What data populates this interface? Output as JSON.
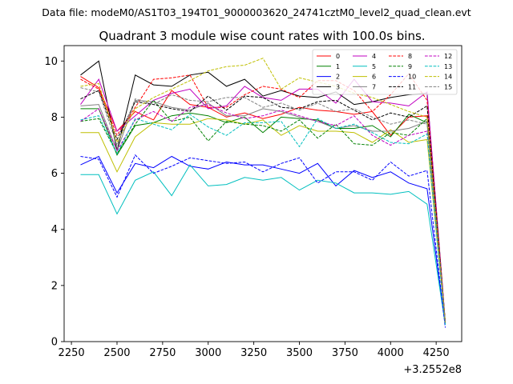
{
  "figure": {
    "suptitle": "Data file: modeM0/AS1T03_194T01_9000003620_24741cztM0_level2_quad_clean.evt"
  },
  "chart_data": {
    "type": "line",
    "title": "Quadrant 3 module wise count rates with 100.0s bins.",
    "xlabel": "",
    "ylabel": "",
    "x_offset_label": "+3.2552e8",
    "xlim": [
      2210,
      4390
    ],
    "ylim": [
      0,
      10.55
    ],
    "xticks": [
      2250,
      2500,
      2750,
      3000,
      3250,
      3500,
      3750,
      4000,
      4250
    ],
    "yticks": [
      0,
      2,
      4,
      6,
      8,
      10
    ],
    "grid": false,
    "legend": {
      "placement": "top-right",
      "columns": 4
    },
    "x": [
      2300,
      2400,
      2500,
      2600,
      2700,
      2800,
      2900,
      3000,
      3100,
      3200,
      3300,
      3400,
      3500,
      3600,
      3700,
      3800,
      3900,
      4000,
      4100,
      4200,
      4300
    ],
    "series": [
      {
        "name": "0",
        "color": "#ff0000",
        "dash": "solid",
        "values": [
          9.45,
          9.05,
          7.5,
          8.2,
          7.9,
          8.95,
          8.45,
          8.35,
          8.0,
          8.15,
          7.95,
          8.1,
          8.35,
          8.25,
          8.2,
          8.1,
          8.2,
          7.35,
          8.0,
          8.05,
          0.7
        ]
      },
      {
        "name": "1",
        "color": "#008000",
        "dash": "solid",
        "values": [
          8.3,
          8.3,
          6.65,
          7.7,
          7.8,
          8.05,
          8.15,
          8.05,
          7.8,
          8.0,
          7.45,
          8.0,
          7.95,
          7.9,
          7.6,
          7.6,
          7.7,
          7.3,
          8.1,
          7.8,
          0.65
        ]
      },
      {
        "name": "2",
        "color": "#0000ff",
        "dash": "solid",
        "values": [
          6.3,
          6.6,
          5.3,
          6.35,
          6.2,
          6.6,
          6.25,
          6.15,
          6.4,
          6.3,
          6.3,
          6.15,
          6.0,
          6.35,
          5.55,
          6.1,
          5.85,
          6.05,
          5.65,
          5.45,
          0.6
        ]
      },
      {
        "name": "3",
        "color": "#000000",
        "dash": "solid",
        "values": [
          9.5,
          10.0,
          6.8,
          9.5,
          9.15,
          9.1,
          9.5,
          9.6,
          9.1,
          9.35,
          8.75,
          8.95,
          8.75,
          8.7,
          8.9,
          8.45,
          8.55,
          8.7,
          8.8,
          8.85,
          0.7
        ]
      },
      {
        "name": "4",
        "color": "#c000c0",
        "dash": "solid",
        "values": [
          8.45,
          9.35,
          7.5,
          8.05,
          8.6,
          8.85,
          9.0,
          8.3,
          8.4,
          9.1,
          8.7,
          8.6,
          9.0,
          9.0,
          8.5,
          9.35,
          8.55,
          8.5,
          8.4,
          8.9,
          0.7
        ]
      },
      {
        "name": "5",
        "color": "#00bfbf",
        "dash": "solid",
        "values": [
          5.95,
          5.95,
          4.55,
          5.75,
          6.05,
          5.2,
          6.3,
          5.55,
          5.6,
          5.85,
          5.75,
          5.85,
          5.4,
          5.75,
          5.65,
          5.3,
          5.3,
          5.25,
          5.35,
          4.9,
          0.6
        ]
      },
      {
        "name": "6",
        "color": "#bfbf00",
        "dash": "solid",
        "values": [
          7.45,
          7.45,
          6.05,
          7.3,
          7.8,
          7.75,
          7.75,
          7.95,
          7.9,
          7.75,
          7.9,
          7.35,
          7.7,
          7.5,
          7.5,
          7.45,
          7.1,
          7.55,
          7.1,
          7.2,
          0.65
        ]
      },
      {
        "name": "7",
        "color": "#808080",
        "dash": "solid",
        "values": [
          8.4,
          8.45,
          6.8,
          8.6,
          8.55,
          8.35,
          8.25,
          8.5,
          8.05,
          8.05,
          8.3,
          8.2,
          8.0,
          7.85,
          7.6,
          7.7,
          7.5,
          7.5,
          7.6,
          7.85,
          0.65
        ]
      },
      {
        "name": "8",
        "color": "#ff0000",
        "dash": "dashed",
        "values": [
          9.35,
          9.0,
          7.35,
          8.35,
          9.35,
          9.4,
          9.5,
          8.35,
          8.35,
          8.8,
          9.1,
          9.0,
          8.7,
          9.3,
          9.3,
          8.95,
          8.2,
          8.8,
          9.55,
          8.6,
          0.7
        ]
      },
      {
        "name": "9",
        "color": "#008000",
        "dash": "dashed",
        "values": [
          7.85,
          7.95,
          6.7,
          7.75,
          8.6,
          7.85,
          8.0,
          7.15,
          7.85,
          7.75,
          7.7,
          7.5,
          7.9,
          7.25,
          7.75,
          7.05,
          7.0,
          7.45,
          7.35,
          7.95,
          0.65
        ]
      },
      {
        "name": "10",
        "color": "#0000ff",
        "dash": "dashed",
        "values": [
          6.6,
          6.5,
          5.15,
          6.65,
          6.0,
          6.25,
          6.55,
          6.45,
          6.35,
          6.4,
          6.05,
          6.35,
          6.55,
          5.65,
          6.05,
          6.05,
          5.75,
          6.4,
          5.9,
          6.1,
          0.5
        ]
      },
      {
        "name": "11",
        "color": "#000000",
        "dash": "dashed",
        "values": [
          8.65,
          8.95,
          7.2,
          8.55,
          8.45,
          8.3,
          8.2,
          8.75,
          8.25,
          8.75,
          8.7,
          8.35,
          8.3,
          8.55,
          8.6,
          8.25,
          7.9,
          8.15,
          8.0,
          8.4,
          0.7
        ]
      },
      {
        "name": "12",
        "color": "#c000c0",
        "dash": "dashed",
        "values": [
          7.85,
          8.3,
          6.8,
          7.9,
          8.2,
          7.85,
          8.35,
          8.45,
          8.15,
          7.95,
          8.05,
          8.25,
          8.05,
          7.85,
          7.7,
          8.05,
          7.35,
          7.0,
          7.35,
          7.5,
          0.65
        ]
      },
      {
        "name": "13",
        "color": "#00bfbf",
        "dash": "dashed",
        "values": [
          7.9,
          8.05,
          6.7,
          7.95,
          7.75,
          7.55,
          8.1,
          7.65,
          7.35,
          7.8,
          7.8,
          7.85,
          6.95,
          7.95,
          7.6,
          7.75,
          7.45,
          7.1,
          7.05,
          7.4,
          0.6
        ]
      },
      {
        "name": "14",
        "color": "#bfbf00",
        "dash": "dashed",
        "values": [
          9.1,
          9.2,
          7.1,
          8.3,
          8.7,
          9.0,
          9.3,
          9.65,
          9.8,
          9.85,
          10.1,
          9.0,
          9.4,
          9.25,
          9.1,
          8.85,
          8.7,
          8.45,
          8.2,
          8.0,
          0.7
        ]
      },
      {
        "name": "15",
        "color": "#808080",
        "dash": "dashed",
        "values": [
          9.05,
          8.9,
          7.0,
          8.65,
          8.45,
          8.8,
          8.6,
          8.55,
          8.7,
          8.7,
          8.35,
          8.5,
          8.25,
          8.5,
          8.2,
          8.3,
          8.0,
          7.75,
          7.9,
          7.75,
          0.7
        ]
      }
    ]
  }
}
